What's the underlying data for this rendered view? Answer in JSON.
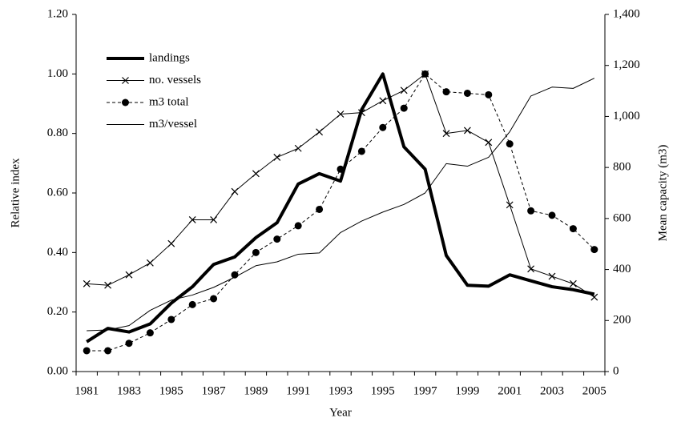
{
  "chart_data": {
    "type": "line",
    "x_label": "Year",
    "y_label": "Relative index",
    "y2_label": "Mean capacity (m3)",
    "categories": [
      "1981",
      null,
      "1983",
      null,
      "1985",
      null,
      "1987",
      null,
      "1989",
      null,
      "1991",
      null,
      "1993",
      null,
      "1995",
      null,
      "1997",
      null,
      "1999",
      null,
      "2001",
      null,
      "2003",
      null,
      "2005"
    ],
    "ylim": [
      0,
      1.2
    ],
    "yticks": [
      {
        "value": 0,
        "label": "0.00"
      },
      {
        "value": 0.2,
        "label": "0.20"
      },
      {
        "value": 0.4,
        "label": "0.40"
      },
      {
        "value": 0.6,
        "label": "0.60"
      },
      {
        "value": 0.8,
        "label": "0.80"
      },
      {
        "value": 1,
        "label": "1.00"
      },
      {
        "value": 1.2,
        "label": "1.20"
      }
    ],
    "y2lim": [
      0,
      1400
    ],
    "y2ticks": [
      0,
      200,
      400,
      600,
      800,
      {
        "value": 1000,
        "label": "1,000"
      },
      {
        "value": 1200,
        "label": "1,200"
      },
      {
        "value": 1400,
        "label": "1,400"
      }
    ],
    "legend": "upper left",
    "series": [
      {
        "name": "landings",
        "color": "#000000",
        "line_width": 4,
        "dash": "solid",
        "marker": "none",
        "values": [
          0.1,
          0.145,
          0.133,
          0.16,
          0.23,
          0.285,
          0.36,
          0.385,
          0.45,
          0.5,
          0.63,
          0.665,
          0.64,
          0.88,
          1.0,
          0.755,
          0.68,
          0.39,
          0.29,
          0.287,
          0.325,
          0.305,
          0.285,
          0.275,
          0.26
        ]
      },
      {
        "name": "no. vessels",
        "color": "#000000",
        "line_width": 1,
        "dash": "solid",
        "marker": "x",
        "values": [
          0.295,
          0.29,
          0.325,
          0.365,
          0.43,
          0.51,
          0.51,
          0.605,
          0.665,
          0.72,
          0.75,
          0.805,
          0.865,
          0.87,
          0.91,
          0.945,
          1.0,
          0.8,
          0.81,
          0.77,
          0.56,
          0.345,
          0.32,
          0.295,
          0.25
        ]
      },
      {
        "name": "m3 total",
        "color": "#000000",
        "line_width": 1,
        "dash": "dashed",
        "marker": "circle",
        "values": [
          0.07,
          0.07,
          0.095,
          0.13,
          0.175,
          0.225,
          0.245,
          0.325,
          0.4,
          0.445,
          0.49,
          0.545,
          0.68,
          0.74,
          0.82,
          0.885,
          1.0,
          0.94,
          0.935,
          0.93,
          0.765,
          0.54,
          0.525,
          0.48,
          0.41
        ]
      },
      {
        "name": "m3/vessel",
        "color": "#000000",
        "line_width": 1,
        "dash": "solid",
        "marker": "none",
        "axis": "y2",
        "values": [
          160,
          163,
          180,
          240,
          280,
          300,
          330,
          370,
          415,
          430,
          460,
          465,
          545,
          590,
          625,
          655,
          700,
          815,
          805,
          840,
          940,
          1080,
          1115,
          1110,
          1150
        ]
      }
    ]
  }
}
